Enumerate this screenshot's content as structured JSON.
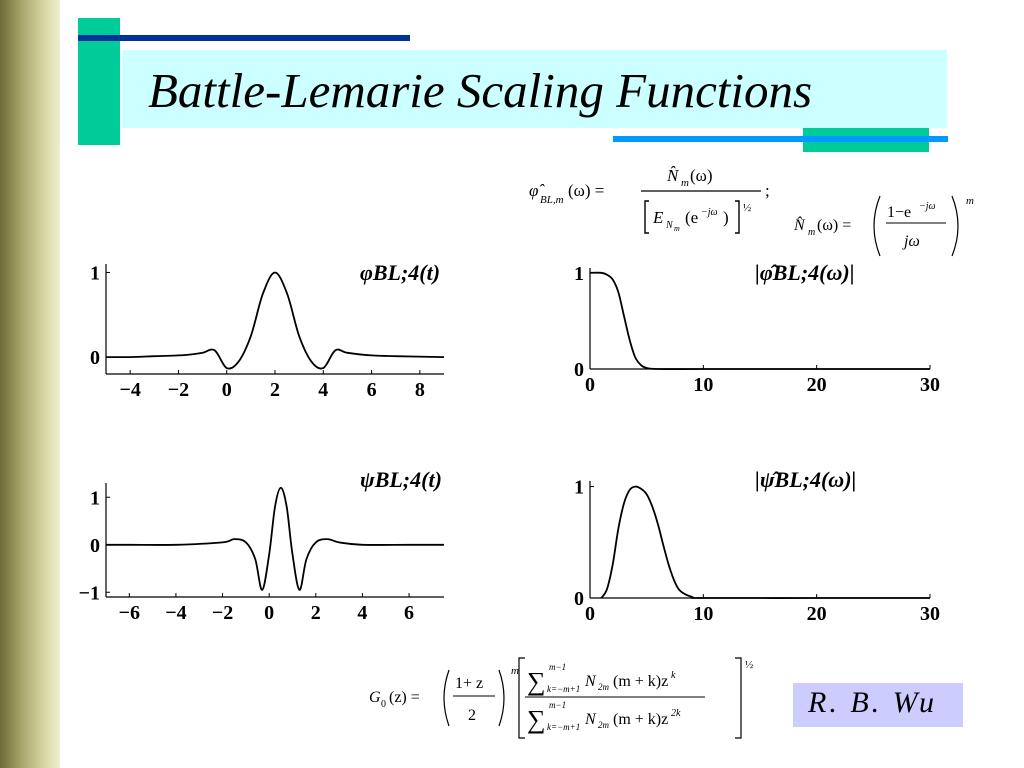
{
  "slide": {
    "title": "Battle-Lemarie Scaling Functions",
    "author": "R. B. Wu"
  },
  "colors": {
    "title_bg": "#ccffff",
    "author_bg": "#ccccff",
    "accent_green": "#00cc99",
    "accent_navy": "#003399",
    "accent_blue": "#0099ff"
  },
  "equations": {
    "phi_hat": "φ̂_{BL,m}(ω) = N̂_m(ω) / [E_{N_m}(e^{-jω})]^{1/2} ;",
    "n_hat": "N̂_m(ω) = ((1 − e^{−jω}) / jω)^m",
    "g0": "G_0(z) = ((1+z)/2)^m [ Σ_{k=−m+1}^{m−1} N_{2m}(m+k) z^k / Σ_{k=−m+1}^{m−1} N_{2m}(m+k) z^{2k} ]^{1/2}"
  },
  "chart_data": [
    {
      "type": "line",
      "label": "φBL;4(t)",
      "x": [
        -5,
        -4,
        -3,
        -2,
        -1.5,
        -1,
        -0.5,
        0,
        0.5,
        1,
        1.5,
        2,
        2.5,
        3,
        3.5,
        4,
        4.5,
        5,
        6,
        7,
        9
      ],
      "values": [
        0.0,
        0.0,
        0.01,
        0.02,
        0.03,
        0.05,
        0.08,
        -0.13,
        -0.05,
        0.25,
        0.75,
        1.0,
        0.75,
        0.25,
        -0.05,
        -0.13,
        0.08,
        0.05,
        0.02,
        0.01,
        0.0
      ],
      "xticks": [
        "-4",
        "-2",
        "0",
        "2",
        "4",
        "6",
        "8"
      ],
      "yticks": [
        "0",
        "1"
      ],
      "xlim": [
        -5,
        9
      ],
      "ylim": [
        -0.2,
        1.1
      ]
    },
    {
      "type": "line",
      "label": "|φ̂BL;4(ω)|",
      "x": [
        0,
        1,
        1.5,
        2,
        2.5,
        3,
        3.5,
        4,
        4.5,
        5,
        6,
        10,
        20,
        30
      ],
      "values": [
        1.0,
        1.0,
        0.98,
        0.93,
        0.8,
        0.55,
        0.3,
        0.12,
        0.04,
        0.01,
        0.0,
        0.0,
        0.0,
        0.0
      ],
      "xticks": [
        "0",
        "10",
        "20",
        "30"
      ],
      "yticks": [
        "0",
        "1"
      ],
      "xlim": [
        0,
        30
      ],
      "ylim": [
        0,
        1.05
      ]
    },
    {
      "type": "line",
      "label": "ψBL;4(t)",
      "x": [
        -7,
        -6,
        -4,
        -2,
        -1.5,
        -1,
        -0.6,
        -0.3,
        0,
        0.25,
        0.5,
        0.75,
        1,
        1.3,
        1.6,
        2,
        2.5,
        3,
        4,
        6,
        7.5
      ],
      "values": [
        0.0,
        0.0,
        0.0,
        0.05,
        0.12,
        0.05,
        -0.3,
        -0.95,
        -0.2,
        0.8,
        1.2,
        0.8,
        -0.2,
        -0.95,
        -0.3,
        0.05,
        0.12,
        0.05,
        0.0,
        0.0,
        0.0
      ],
      "xticks": [
        "-6",
        "-4",
        "-2",
        "0",
        "2",
        "4",
        "6"
      ],
      "yticks": [
        "-1",
        "0",
        "1"
      ],
      "xlim": [
        -7,
        7.5
      ],
      "ylim": [
        -1.1,
        1.3
      ]
    },
    {
      "type": "line",
      "label": "|ψ̂BL;4(ω)|",
      "x": [
        1,
        1.5,
        2,
        2.5,
        3,
        3.5,
        4,
        4.5,
        5,
        5.5,
        6,
        6.5,
        7,
        7.5,
        8,
        9,
        10,
        20,
        30
      ],
      "values": [
        0.0,
        0.08,
        0.3,
        0.62,
        0.85,
        0.97,
        1.0,
        0.98,
        0.93,
        0.82,
        0.66,
        0.46,
        0.28,
        0.14,
        0.06,
        0.01,
        0.0,
        0.0,
        0.0
      ],
      "xticks": [
        "0",
        "10",
        "20",
        "30"
      ],
      "yticks": [
        "0",
        "1"
      ],
      "xlim": [
        0,
        30
      ],
      "ylim": [
        0,
        1.05
      ]
    }
  ]
}
